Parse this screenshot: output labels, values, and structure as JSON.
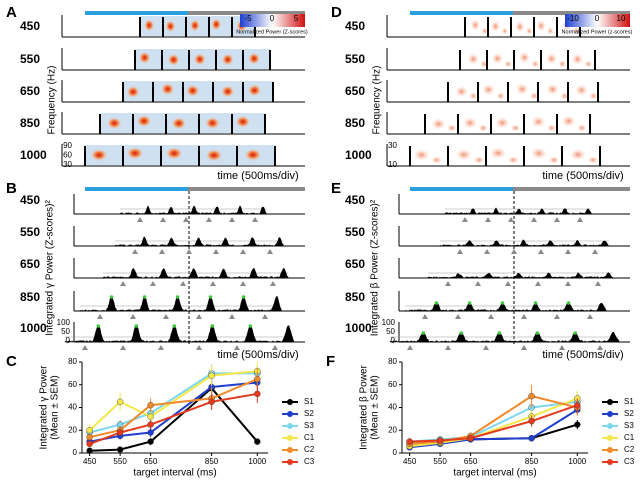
{
  "panels": {
    "A": {
      "letter": "A",
      "rows": [
        "450",
        "550",
        "650",
        "850",
        "1000"
      ],
      "y_label": "Frequency (Hz)",
      "y_ticks": [
        "90",
        "60",
        "30"
      ],
      "colorbar_ticks": [
        "-5",
        "0",
        "5"
      ],
      "colorbar_label": "Normalized Power (Z-scores)",
      "x_label": "time (500ms/div)"
    },
    "B": {
      "letter": "B",
      "rows": [
        "450",
        "550",
        "650",
        "850",
        "1000"
      ],
      "y_label": "Integrated γ Power (Z-scores)²",
      "y_ticks": [
        "100",
        "50",
        "0"
      ],
      "x_label": "time (500ms/div)"
    },
    "D": {
      "letter": "D",
      "rows": [
        "450",
        "550",
        "650",
        "850",
        "1000"
      ],
      "y_label": "Frequency (Hz)",
      "y_ticks": [
        "30",
        "10"
      ],
      "colorbar_ticks": [
        "-10",
        "0",
        "10"
      ],
      "colorbar_label": "Normalized Power (z-scores)",
      "x_label": "time (500ms/div)"
    },
    "E": {
      "letter": "E",
      "rows": [
        "450",
        "550",
        "650",
        "850",
        "1000"
      ],
      "y_label": "Integrated β Power (Z-scores)²",
      "y_ticks": [
        "100",
        "50",
        "0"
      ],
      "x_label": "time (500ms/div)"
    }
  },
  "chart_data": [
    {
      "type": "line",
      "letter": "C",
      "y_label": [
        "Integrated γ Power",
        "(Mean ± SEM)"
      ],
      "x_label": "target interval (ms)",
      "x": [
        450,
        550,
        650,
        850,
        1000
      ],
      "xlim": [
        425,
        1035
      ],
      "xticks": [
        450,
        550,
        650,
        850,
        1000
      ],
      "ylim": [
        0,
        80
      ],
      "yticks": [
        0,
        20,
        40,
        60,
        80
      ],
      "series": [
        {
          "name": "S1",
          "color": "#000000",
          "values": [
            2,
            3,
            10,
            57,
            10
          ],
          "errors": [
            1,
            1,
            3,
            8,
            3
          ]
        },
        {
          "name": "S2",
          "color": "#1f3fd0",
          "values": [
            10,
            15,
            18,
            58,
            62
          ],
          "errors": [
            2,
            3,
            4,
            8,
            6
          ]
        },
        {
          "name": "S3",
          "color": "#7fd6f0",
          "values": [
            18,
            25,
            35,
            70,
            70
          ],
          "errors": [
            3,
            4,
            6,
            8,
            7
          ]
        },
        {
          "name": "C1",
          "color": "#f3e84a",
          "values": [
            20,
            45,
            32,
            68,
            72
          ],
          "errors": [
            5,
            8,
            6,
            9,
            8
          ]
        },
        {
          "name": "C2",
          "color": "#f08a2a",
          "values": [
            14,
            20,
            42,
            48,
            65
          ],
          "errors": [
            3,
            4,
            6,
            10,
            9
          ]
        },
        {
          "name": "C3",
          "color": "#e53a1e",
          "values": [
            8,
            18,
            25,
            45,
            52
          ],
          "errors": [
            2,
            3,
            4,
            7,
            8
          ]
        }
      ]
    },
    {
      "type": "line",
      "letter": "F",
      "y_label": [
        "Integrated β Power",
        "(Mean ± SEM)"
      ],
      "x_label": "target interval (ms)",
      "x": [
        450,
        550,
        650,
        850,
        1000
      ],
      "xlim": [
        425,
        1035
      ],
      "xticks": [
        450,
        550,
        650,
        850,
        1000
      ],
      "ylim": [
        0,
        80
      ],
      "yticks": [
        0,
        20,
        40,
        60,
        80
      ],
      "series": [
        {
          "name": "S1",
          "color": "#000000",
          "values": [
            8,
            10,
            12,
            13,
            25
          ],
          "errors": [
            2,
            2,
            2,
            2,
            4
          ]
        },
        {
          "name": "S2",
          "color": "#1f3fd0",
          "values": [
            5,
            8,
            12,
            13,
            38
          ],
          "errors": [
            2,
            2,
            2,
            2,
            5
          ]
        },
        {
          "name": "S3",
          "color": "#7fd6f0",
          "values": [
            10,
            12,
            14,
            40,
            45
          ],
          "errors": [
            2,
            2,
            3,
            6,
            6
          ]
        },
        {
          "name": "C1",
          "color": "#f3e84a",
          "values": [
            6,
            9,
            13,
            32,
            48
          ],
          "errors": [
            2,
            2,
            3,
            6,
            7
          ]
        },
        {
          "name": "C2",
          "color": "#f08a2a",
          "values": [
            8,
            10,
            15,
            50,
            40
          ],
          "errors": [
            2,
            2,
            3,
            10,
            7
          ]
        },
        {
          "name": "C3",
          "color": "#e53a1e",
          "values": [
            10,
            11,
            13,
            28,
            42
          ],
          "errors": [
            3,
            2,
            3,
            5,
            6
          ]
        }
      ]
    }
  ]
}
